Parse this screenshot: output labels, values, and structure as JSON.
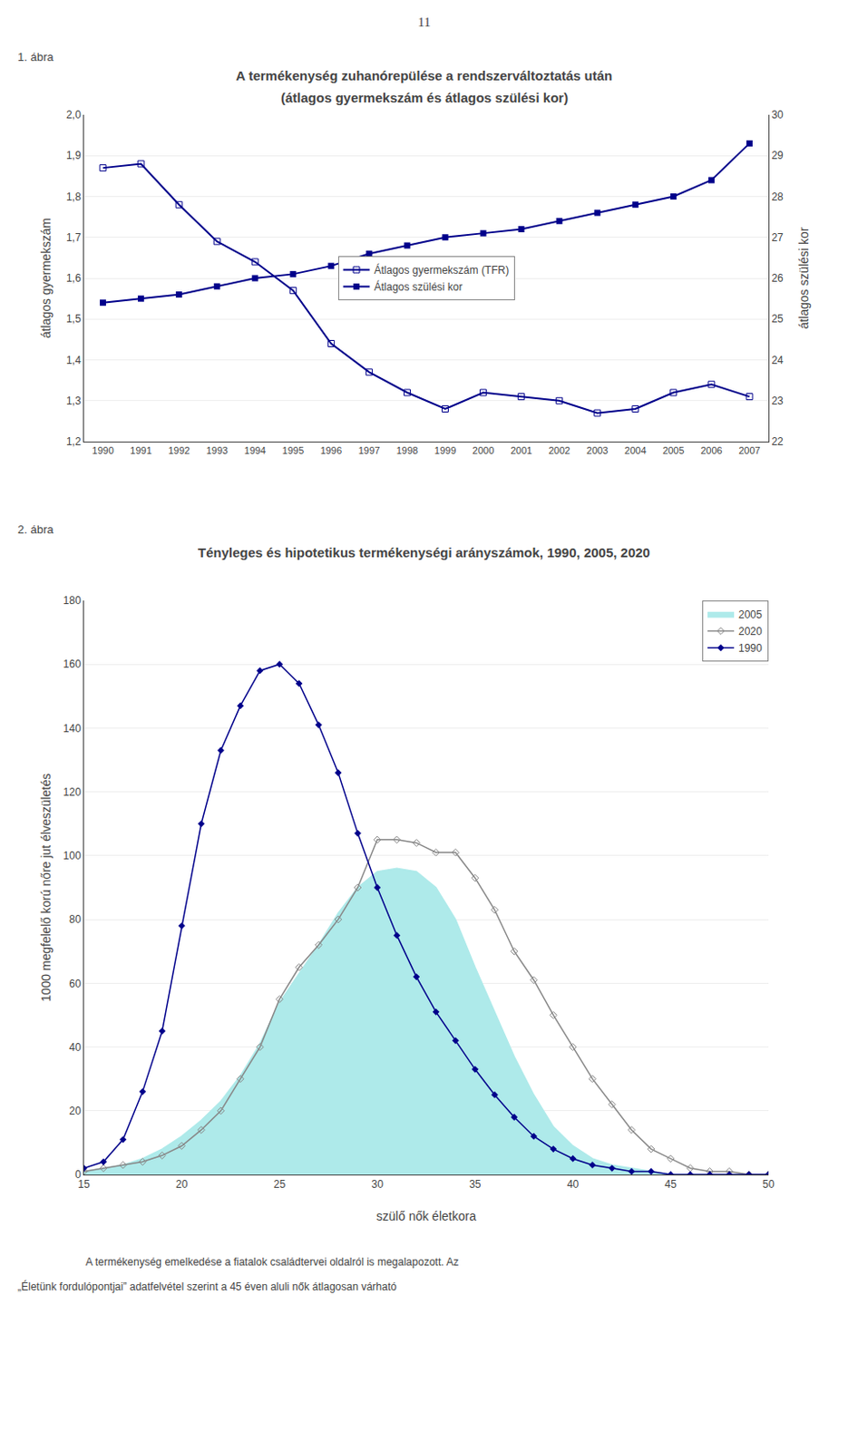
{
  "chart_data": [
    {
      "type": "line",
      "title": "A termékenység zuhanórepülése a rendszerváltoztatás után",
      "subtitle": "(átlagos gyermekszám és átlagos szülési kor)",
      "ylabel": "átlagos gyermekszám",
      "y2label": "átlagos szülési kor",
      "annotations": [
        "11",
        "1. ábra"
      ],
      "x": [
        1990,
        1991,
        1992,
        1993,
        1994,
        1995,
        1996,
        1997,
        1998,
        1999,
        2000,
        2001,
        2002,
        2003,
        2004,
        2005,
        2006,
        2007
      ],
      "series": [
        {
          "name": "Átlagos gyermekszám (TFR)",
          "color": "#00008B",
          "marker": "square-open",
          "values": [
            1.87,
            1.88,
            1.78,
            1.69,
            1.64,
            1.57,
            1.44,
            1.37,
            1.32,
            1.28,
            1.32,
            1.31,
            1.3,
            1.27,
            1.28,
            1.32,
            1.34,
            1.31
          ]
        },
        {
          "name": "Átlagos szülési kor",
          "color": "#00008B",
          "marker": "square",
          "axis": "y2",
          "values": [
            25.4,
            25.5,
            25.6,
            25.8,
            26.0,
            26.1,
            26.3,
            26.6,
            26.8,
            27.0,
            27.1,
            27.2,
            27.4,
            27.6,
            27.8,
            28.0,
            28.4,
            29.3
          ]
        }
      ],
      "xlim": [
        1989.5,
        2007.5
      ],
      "xticks": [
        1990,
        1991,
        1992,
        1993,
        1994,
        1995,
        1996,
        1997,
        1998,
        1999,
        2000,
        2001,
        2002,
        2003,
        2004,
        2005,
        2006,
        2007
      ],
      "ylim": [
        1.2,
        2.0
      ],
      "yticks": [
        {
          "value": 1.2,
          "label": "1,2"
        },
        {
          "value": 1.3,
          "label": "1,3"
        },
        {
          "value": 1.4,
          "label": "1,4"
        },
        {
          "value": 1.5,
          "label": "1,5"
        },
        {
          "value": 1.6,
          "label": "1,6"
        },
        {
          "value": 1.7,
          "label": "1,7"
        },
        {
          "value": 1.8,
          "label": "1,8"
        },
        {
          "value": 1.9,
          "label": "1,9"
        },
        {
          "value": 2.0,
          "label": "2,0"
        }
      ],
      "y2lim": [
        22,
        30
      ],
      "y2ticks": [
        22,
        23,
        24,
        25,
        26,
        27,
        28,
        29,
        30
      ],
      "grid": true,
      "legend": "center"
    },
    {
      "type": "line",
      "title": "Tényleges és hipotetikus termékenységi arányszámok, 1990, 2005, 2020",
      "ylabel": "1000 megfelelő korú nőre jut élveszületés",
      "xlabel": "szülő nők életkora",
      "annotations": [
        "2. ábra",
        "A termékenység emelkedése a fiatalok családtervei oldalról is megalapozott. Az",
        "„Életünk fordulópontjai” adatfelvétel szerint a 45 éven aluli nők átlagosan várható"
      ],
      "x": [
        15,
        16,
        17,
        18,
        19,
        20,
        21,
        22,
        23,
        24,
        25,
        26,
        27,
        28,
        29,
        30,
        31,
        32,
        33,
        34,
        35,
        36,
        37,
        38,
        39,
        40,
        41,
        42,
        43,
        44,
        45,
        46,
        47,
        48,
        49,
        50
      ],
      "series": [
        {
          "name": "2005",
          "type": "area",
          "color": "#AEEAEA",
          "values": [
            1,
            2,
            3,
            5,
            8,
            12,
            17,
            23,
            31,
            41,
            54,
            63,
            72,
            82,
            90,
            95,
            96,
            95,
            90,
            80,
            65,
            51,
            37,
            25,
            15,
            9,
            5,
            3,
            2,
            1,
            0,
            0,
            0,
            0,
            0,
            0
          ]
        },
        {
          "name": "2020",
          "type": "line",
          "color": "#888888",
          "marker": "diamond-open",
          "values": [
            1,
            2,
            3,
            4,
            6,
            9,
            14,
            20,
            30,
            40,
            55,
            65,
            72,
            80,
            90,
            105,
            105,
            104,
            101,
            101,
            93,
            83,
            70,
            61,
            50,
            40,
            30,
            22,
            14,
            8,
            5,
            2,
            1,
            1,
            0,
            0
          ]
        },
        {
          "name": "1990",
          "type": "line",
          "color": "#00008B",
          "marker": "diamond",
          "values": [
            2,
            4,
            11,
            26,
            45,
            78,
            110,
            133,
            147,
            158,
            160,
            154,
            141,
            126,
            107,
            90,
            75,
            62,
            51,
            42,
            33,
            25,
            18,
            12,
            8,
            5,
            3,
            2,
            1,
            1,
            0,
            0,
            0,
            0,
            0,
            0
          ]
        }
      ],
      "xlim": [
        15,
        50
      ],
      "xticks": [
        15,
        20,
        25,
        30,
        35,
        40,
        45,
        50
      ],
      "ylim": [
        0,
        180
      ],
      "yticks": [
        0,
        20,
        40,
        60,
        80,
        100,
        120,
        140,
        160,
        180
      ],
      "grid": true,
      "legend": "upper right"
    }
  ]
}
